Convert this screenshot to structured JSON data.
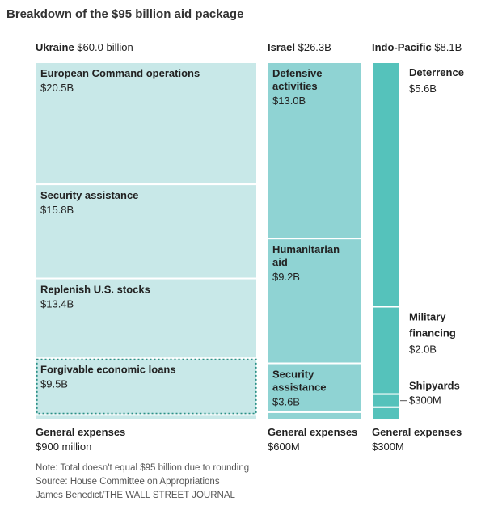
{
  "title": "Breakdown of the $95 billion aid package",
  "colors": {
    "ukraine_fill": "#c8e8e8",
    "israel_fill": "#8fd3d3",
    "indo_fill": "#55c2bb",
    "label_dark": "#222222",
    "border": "#ffffff",
    "dotted": "#2a8f86"
  },
  "chart_data": {
    "type": "treemap",
    "unit": "billion USD",
    "groups": [
      {
        "key": "ukraine",
        "name": "Ukraine",
        "total_label": "$60.0 billion",
        "total": 60.0,
        "items": [
          {
            "name": "European Command operations",
            "label": "$20.5B",
            "value": 20.5
          },
          {
            "name": "Security assistance",
            "label": "$15.8B",
            "value": 15.8
          },
          {
            "name": "Replenish U.S. stocks",
            "label": "$13.4B",
            "value": 13.4
          },
          {
            "name": "Forgivable economic loans",
            "label": "$9.5B",
            "value": 9.5,
            "style": "dotted"
          },
          {
            "name": "General expenses",
            "label": "$900 million",
            "value": 0.9
          }
        ]
      },
      {
        "key": "israel",
        "name": "Israel",
        "total_label": "$26.3B",
        "total": 26.3,
        "items": [
          {
            "name": "Defensive activities",
            "label": "$13.0B",
            "value": 13.0
          },
          {
            "name": "Humanitarian aid",
            "label": "$9.2B",
            "value": 9.2
          },
          {
            "name": "Security assistance",
            "label": "$3.6B",
            "value": 3.6
          },
          {
            "name": "General expenses",
            "label": "$600M",
            "value": 0.6
          }
        ]
      },
      {
        "key": "indo",
        "name": "Indo-Pacific",
        "total_label": "$8.1B",
        "total": 8.1,
        "items": [
          {
            "name": "Deterrence",
            "label": "$5.6B",
            "value": 5.6
          },
          {
            "name": "Military financing",
            "label": "$2.0B",
            "value": 2.0
          },
          {
            "name": "Shipyards",
            "label": "$300M",
            "value": 0.3
          },
          {
            "name": "General expenses",
            "label": "$300M",
            "value": 0.3
          }
        ]
      }
    ]
  },
  "notes": {
    "note": "Note: Total doesn't equal $95 billion due to rounding",
    "source": "Source: House Committee on Appropriations",
    "credit": "James Benedict/THE WALL STREET JOURNAL"
  }
}
